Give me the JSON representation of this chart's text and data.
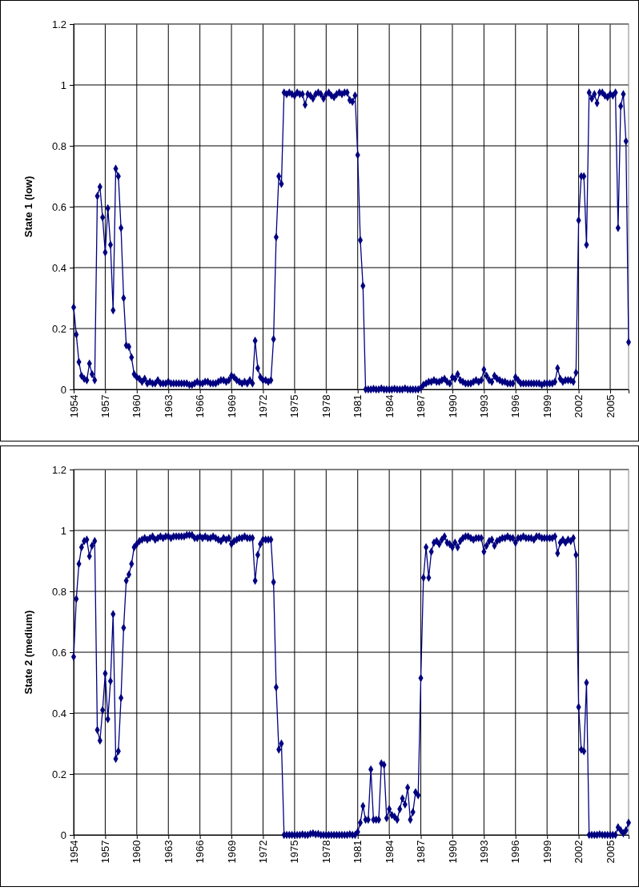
{
  "chart_data": [
    {
      "type": "line",
      "ylabel": "State 1 (low)",
      "marker": "diamond",
      "grid": true,
      "ylim": [
        0,
        1.2
      ],
      "yticks": [
        0,
        0.2,
        0.4,
        0.6,
        0.8,
        1,
        1.2
      ],
      "categories": [
        "1954",
        null,
        null,
        null,
        null,
        null,
        null,
        null,
        null,
        null,
        null,
        null,
        "1957",
        null,
        null,
        null,
        null,
        null,
        null,
        null,
        null,
        null,
        null,
        null,
        "1960",
        null,
        null,
        null,
        null,
        null,
        null,
        null,
        null,
        null,
        null,
        null,
        "1963",
        null,
        null,
        null,
        null,
        null,
        null,
        null,
        null,
        null,
        null,
        null,
        "1966",
        null,
        null,
        null,
        null,
        null,
        null,
        null,
        null,
        null,
        null,
        null,
        "1969",
        null,
        null,
        null,
        null,
        null,
        null,
        null,
        null,
        null,
        null,
        null,
        "1972",
        null,
        null,
        null,
        null,
        null,
        null,
        null,
        null,
        null,
        null,
        null,
        "1975",
        null,
        null,
        null,
        null,
        null,
        null,
        null,
        null,
        null,
        null,
        null,
        "1978",
        null,
        null,
        null,
        null,
        null,
        null,
        null,
        null,
        null,
        null,
        null,
        "1981",
        null,
        null,
        null,
        null,
        null,
        null,
        null,
        null,
        null,
        null,
        null,
        "1984",
        null,
        null,
        null,
        null,
        null,
        null,
        null,
        null,
        null,
        null,
        null,
        "1987",
        null,
        null,
        null,
        null,
        null,
        null,
        null,
        null,
        null,
        null,
        null,
        "1990",
        null,
        null,
        null,
        null,
        null,
        null,
        null,
        null,
        null,
        null,
        null,
        "1993",
        null,
        null,
        null,
        null,
        null,
        null,
        null,
        null,
        null,
        null,
        null,
        "1996",
        null,
        null,
        null,
        null,
        null,
        null,
        null,
        null,
        null,
        null,
        null,
        "1999",
        null,
        null,
        null,
        null,
        null,
        null,
        null,
        null,
        null,
        null,
        null,
        "2002",
        null,
        null,
        null,
        null,
        null,
        null,
        null,
        null,
        null,
        null,
        null,
        "2005",
        null,
        null,
        null,
        null,
        null,
        null,
        null
      ],
      "series": [
        {
          "color": "#000080",
          "values": [
            0.27,
            0.18,
            0.09,
            0.045,
            0.035,
            0.03,
            0.085,
            0.05,
            0.03,
            0.635,
            0.665,
            0.565,
            0.45,
            0.595,
            0.475,
            0.26,
            0.725,
            0.7,
            0.53,
            0.3,
            0.145,
            0.14,
            0.105,
            0.05,
            0.04,
            0.035,
            0.025,
            0.035,
            0.02,
            0.025,
            0.02,
            0.02,
            0.03,
            0.02,
            0.02,
            0.02,
            0.025,
            0.02,
            0.02,
            0.02,
            0.02,
            0.02,
            0.02,
            0.02,
            0.015,
            0.015,
            0.02,
            0.025,
            0.02,
            0.02,
            0.025,
            0.025,
            0.02,
            0.02,
            0.02,
            0.025,
            0.03,
            0.03,
            0.025,
            0.03,
            0.045,
            0.04,
            0.03,
            0.025,
            0.02,
            0.025,
            0.02,
            0.03,
            0.02,
            0.16,
            0.07,
            0.04,
            0.03,
            0.03,
            0.025,
            0.03,
            0.165,
            0.5,
            0.7,
            0.675,
            0.975,
            0.97,
            0.975,
            0.97,
            0.965,
            0.975,
            0.97,
            0.97,
            0.935,
            0.97,
            0.965,
            0.955,
            0.97,
            0.975,
            0.97,
            0.955,
            0.97,
            0.975,
            0.965,
            0.96,
            0.97,
            0.975,
            0.97,
            0.975,
            0.975,
            0.95,
            0.945,
            0.965,
            0.77,
            0.49,
            0.34,
            0,
            0,
            0,
            0.002,
            0,
            0,
            0.003,
            0,
            0,
            0,
            0,
            0.002,
            0,
            0,
            0,
            0.003,
            0,
            0,
            0,
            0,
            0,
            0.005,
            0.015,
            0.02,
            0.025,
            0.025,
            0.03,
            0.025,
            0.025,
            0.03,
            0.035,
            0.025,
            0.02,
            0.04,
            0.035,
            0.05,
            0.03,
            0.025,
            0.02,
            0.02,
            0.02,
            0.025,
            0.03,
            0.025,
            0.03,
            0.065,
            0.045,
            0.03,
            0.025,
            0.045,
            0.035,
            0.03,
            0.025,
            0.025,
            0.02,
            0.02,
            0.02,
            0.04,
            0.03,
            0.02,
            0.02,
            0.02,
            0.02,
            0.02,
            0.02,
            0.02,
            0.02,
            0.015,
            0.02,
            0.02,
            0.02,
            0.02,
            0.025,
            0.07,
            0.035,
            0.025,
            0.03,
            0.03,
            0.03,
            0.025,
            0.055,
            0.555,
            0.7,
            0.7,
            0.475,
            0.975,
            0.955,
            0.97,
            0.94,
            0.975,
            0.975,
            0.965,
            0.96,
            0.97,
            0.965,
            0.975,
            0.53,
            0.93,
            0.97,
            0.815,
            0.155
          ]
        }
      ]
    },
    {
      "type": "line",
      "ylabel": "State 2 (medium)",
      "marker": "diamond",
      "grid": true,
      "ylim": [
        0,
        1.2
      ],
      "yticks": [
        0,
        0.2,
        0.4,
        0.6,
        0.8,
        1,
        1.2
      ],
      "categories": [
        "1954",
        null,
        null,
        null,
        null,
        null,
        null,
        null,
        null,
        null,
        null,
        null,
        "1957",
        null,
        null,
        null,
        null,
        null,
        null,
        null,
        null,
        null,
        null,
        null,
        "1960",
        null,
        null,
        null,
        null,
        null,
        null,
        null,
        null,
        null,
        null,
        null,
        "1963",
        null,
        null,
        null,
        null,
        null,
        null,
        null,
        null,
        null,
        null,
        null,
        "1966",
        null,
        null,
        null,
        null,
        null,
        null,
        null,
        null,
        null,
        null,
        null,
        "1969",
        null,
        null,
        null,
        null,
        null,
        null,
        null,
        null,
        null,
        null,
        null,
        "1972",
        null,
        null,
        null,
        null,
        null,
        null,
        null,
        null,
        null,
        null,
        null,
        "1975",
        null,
        null,
        null,
        null,
        null,
        null,
        null,
        null,
        null,
        null,
        null,
        "1978",
        null,
        null,
        null,
        null,
        null,
        null,
        null,
        null,
        null,
        null,
        null,
        "1981",
        null,
        null,
        null,
        null,
        null,
        null,
        null,
        null,
        null,
        null,
        null,
        "1984",
        null,
        null,
        null,
        null,
        null,
        null,
        null,
        null,
        null,
        null,
        null,
        "1987",
        null,
        null,
        null,
        null,
        null,
        null,
        null,
        null,
        null,
        null,
        null,
        "1990",
        null,
        null,
        null,
        null,
        null,
        null,
        null,
        null,
        null,
        null,
        null,
        "1993",
        null,
        null,
        null,
        null,
        null,
        null,
        null,
        null,
        null,
        null,
        null,
        "1996",
        null,
        null,
        null,
        null,
        null,
        null,
        null,
        null,
        null,
        null,
        null,
        "1999",
        null,
        null,
        null,
        null,
        null,
        null,
        null,
        null,
        null,
        null,
        null,
        "2002",
        null,
        null,
        null,
        null,
        null,
        null,
        null,
        null,
        null,
        null,
        null,
        "2005",
        null,
        null,
        null,
        null,
        null,
        null,
        null
      ],
      "series": [
        {
          "color": "#000080",
          "values": [
            0.585,
            0.775,
            0.89,
            0.945,
            0.965,
            0.97,
            0.915,
            0.95,
            0.965,
            0.345,
            0.31,
            0.41,
            0.53,
            0.38,
            0.505,
            0.725,
            0.25,
            0.275,
            0.45,
            0.68,
            0.835,
            0.855,
            0.89,
            0.945,
            0.955,
            0.965,
            0.97,
            0.975,
            0.97,
            0.975,
            0.98,
            0.97,
            0.975,
            0.98,
            0.975,
            0.98,
            0.98,
            0.975,
            0.98,
            0.98,
            0.98,
            0.98,
            0.98,
            0.985,
            0.985,
            0.985,
            0.975,
            0.975,
            0.98,
            0.975,
            0.98,
            0.975,
            0.975,
            0.98,
            0.975,
            0.97,
            0.965,
            0.975,
            0.97,
            0.975,
            0.955,
            0.965,
            0.97,
            0.975,
            0.975,
            0.98,
            0.975,
            0.975,
            0.975,
            0.835,
            0.92,
            0.955,
            0.97,
            0.97,
            0.97,
            0.97,
            0.83,
            0.485,
            0.28,
            0.3,
            0,
            0,
            0,
            0,
            0,
            0,
            0,
            0.002,
            0,
            0,
            0.003,
            0.005,
            0.002,
            0.003,
            0,
            0,
            0,
            0,
            0,
            0,
            0,
            0,
            0,
            0,
            0,
            0.002,
            0,
            0,
            0.01,
            0.04,
            0.095,
            0.05,
            0.05,
            0.215,
            0.05,
            0.05,
            0.05,
            0.235,
            0.23,
            0.055,
            0.085,
            0.065,
            0.06,
            0.05,
            0.085,
            0.12,
            0.1,
            0.155,
            0.05,
            0.075,
            0.14,
            0.13,
            0.515,
            0.845,
            0.945,
            0.845,
            0.93,
            0.96,
            0.965,
            0.955,
            0.97,
            0.98,
            0.96,
            0.955,
            0.945,
            0.96,
            0.945,
            0.965,
            0.975,
            0.98,
            0.98,
            0.975,
            0.97,
            0.975,
            0.975,
            0.975,
            0.93,
            0.95,
            0.965,
            0.97,
            0.95,
            0.965,
            0.97,
            0.975,
            0.975,
            0.98,
            0.975,
            0.975,
            0.96,
            0.975,
            0.975,
            0.98,
            0.975,
            0.975,
            0.975,
            0.97,
            0.98,
            0.98,
            0.975,
            0.975,
            0.975,
            0.975,
            0.975,
            0.98,
            0.925,
            0.96,
            0.97,
            0.96,
            0.97,
            0.965,
            0.975,
            0.92,
            0.42,
            0.28,
            0.275,
            0.5,
            0,
            0,
            0,
            0,
            0.002,
            0,
            0,
            0,
            0,
            0,
            0,
            0.025,
            0.015,
            0.005,
            0.015,
            0.04
          ]
        }
      ]
    }
  ]
}
